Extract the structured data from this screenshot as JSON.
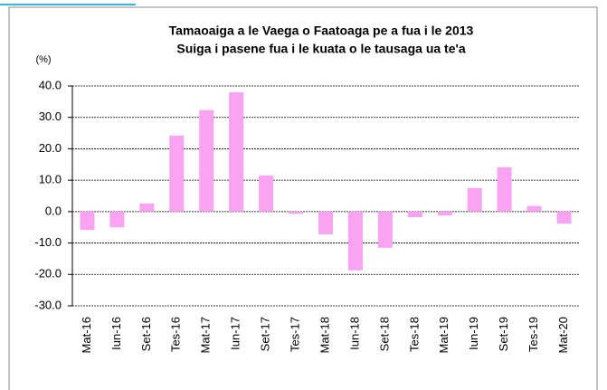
{
  "chart_data": {
    "type": "bar",
    "title": "Tamaoaiga a le Vaega o Faatoaga pe a fua i le 2013",
    "subtitle": "Suiga i pasene fua i le kuata o le tausaga ua te'a",
    "y_label": "(%)",
    "categories": [
      "Mat-16",
      "Iun-16",
      "Set-16",
      "Tes-16",
      "Mat-17",
      "Iun-17",
      "Set-17",
      "Tes-17",
      "Mat-18",
      "Iun-18",
      "Set-18",
      "Tes-18",
      "Mat-19",
      "Iun-19",
      "Set-19",
      "Tes-19",
      "Mat-20"
    ],
    "values": [
      -5.8,
      -5.0,
      2.6,
      24.2,
      32.3,
      38.0,
      11.5,
      -0.7,
      -7.2,
      -18.7,
      -11.5,
      -1.8,
      -1.2,
      7.5,
      14.1,
      1.8,
      -3.8
    ],
    "color": "#fba3f3",
    "ylim": [
      -30,
      40
    ],
    "yticks": [
      {
        "value": -30,
        "label": "-30.0"
      },
      {
        "value": -20,
        "label": "-20.0"
      },
      {
        "value": -10,
        "label": "-10.0"
      },
      {
        "value": 0,
        "label": "0.0"
      },
      {
        "value": 10,
        "label": "10.0"
      },
      {
        "value": 20,
        "label": "20.0"
      },
      {
        "value": 30,
        "label": "30.0"
      },
      {
        "value": 40,
        "label": "40.0"
      }
    ],
    "grid": true
  }
}
